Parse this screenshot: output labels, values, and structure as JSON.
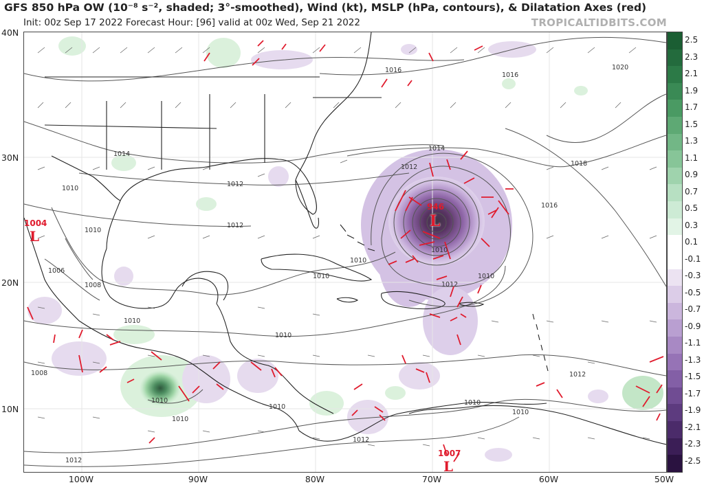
{
  "header": {
    "title": "GFS 850 hPa OW (10⁻⁸ s⁻², shaded; 3°-smoothed), Wind (kt), MSLP (hPa, contours), & Dilatation Axes (red)",
    "subtitle": "Init: 00z Sep 17 2022   Forecast Hour: [96]   valid at 00z Wed, Sep 21 2022",
    "credit": "TROPICALTIDBITS.COM"
  },
  "axes": {
    "lat_labels": [
      "40N",
      "30N",
      "20N",
      "10N"
    ],
    "lon_labels": [
      "100W",
      "90W",
      "80W",
      "70W",
      "60W",
      "50W"
    ]
  },
  "colorbar": {
    "ticks": [
      "2.5",
      "2.3",
      "2.1",
      "1.9",
      "1.7",
      "1.5",
      "1.3",
      "1.1",
      "0.9",
      "0.7",
      "0.5",
      "0.3",
      "0.1",
      "-0.1",
      "-0.3",
      "-0.5",
      "-0.7",
      "-0.9",
      "-1.1",
      "-1.3",
      "-1.5",
      "-1.7",
      "-1.9",
      "-2.1",
      "-2.3",
      "-2.5"
    ],
    "positive_color": "#1b5e33",
    "negative_color": "#3b1046"
  },
  "systems": [
    {
      "symbol": "L",
      "pressure": "946",
      "location": "hurricane east of Bahamas"
    },
    {
      "symbol": "L",
      "pressure": "1004",
      "location": "Mexico"
    },
    {
      "symbol": "L",
      "pressure": "1007",
      "location": "Caribbean south"
    }
  ],
  "isobars": [
    "1016",
    "1016",
    "1020",
    "1014",
    "1012",
    "1018",
    "1016",
    "1014",
    "1010",
    "1012",
    "1012",
    "1010",
    "1006",
    "1008",
    "1010",
    "1010",
    "1010",
    "1010",
    "1010",
    "1012",
    "1010",
    "1010",
    "1008",
    "1010",
    "1010",
    "1012",
    "1010",
    "1012",
    "1012",
    "1010"
  ],
  "colors": {
    "dilatation": "#e01b2d",
    "ow_positive": "#9ed7a3",
    "ow_negative": "#b89ad0",
    "coast": "#222222"
  }
}
